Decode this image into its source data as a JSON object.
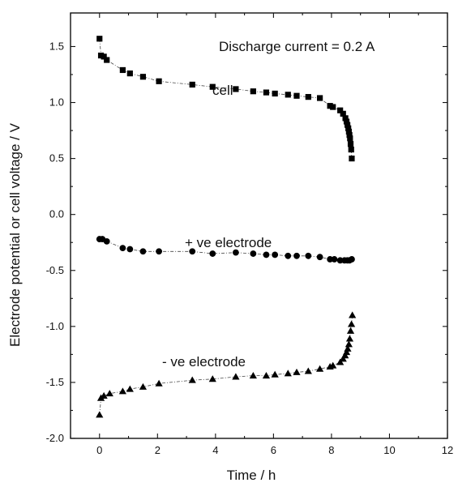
{
  "chart_data": {
    "type": "scatter",
    "title": "",
    "xlabel": "Time / h",
    "ylabel": "Electrode potential or cell voltage / V",
    "xlim": [
      -1,
      12
    ],
    "ylim": [
      -2.0,
      1.8
    ],
    "x_ticks": [
      0,
      2,
      4,
      6,
      8,
      10,
      12
    ],
    "y_ticks": [
      -2.0,
      -1.5,
      -1.0,
      -0.5,
      0.0,
      0.5,
      1.0,
      1.5
    ],
    "x_tick_labels": [
      "0",
      "2",
      "4",
      "6",
      "8",
      "10",
      "12"
    ],
    "y_tick_labels": [
      "-2.0",
      "-1.5",
      "-1.0",
      "-0.5",
      "0.0",
      "0.5",
      "1.0",
      "1.5"
    ],
    "grid": false,
    "annotations": [
      "Discharge current = 0.2 A",
      "cell",
      "+ ve electrode",
      "- ve electrode"
    ],
    "series": [
      {
        "name": "cell",
        "marker": "square",
        "points": [
          [
            0.0,
            1.57
          ],
          [
            0.05,
            1.42
          ],
          [
            0.15,
            1.41
          ],
          [
            0.25,
            1.38
          ],
          [
            0.8,
            1.29
          ],
          [
            1.05,
            1.26
          ],
          [
            1.5,
            1.23
          ],
          [
            2.05,
            1.19
          ],
          [
            3.2,
            1.16
          ],
          [
            3.9,
            1.14
          ],
          [
            4.7,
            1.12
          ],
          [
            5.3,
            1.1
          ],
          [
            5.75,
            1.09
          ],
          [
            6.05,
            1.08
          ],
          [
            6.5,
            1.07
          ],
          [
            6.8,
            1.06
          ],
          [
            7.2,
            1.05
          ],
          [
            7.6,
            1.04
          ],
          [
            7.95,
            0.97
          ],
          [
            8.05,
            0.96
          ],
          [
            8.3,
            0.93
          ],
          [
            8.4,
            0.9
          ],
          [
            8.48,
            0.86
          ],
          [
            8.52,
            0.83
          ],
          [
            8.55,
            0.8
          ],
          [
            8.58,
            0.77
          ],
          [
            8.6,
            0.74
          ],
          [
            8.62,
            0.71
          ],
          [
            8.64,
            0.68
          ],
          [
            8.66,
            0.63
          ],
          [
            8.68,
            0.58
          ],
          [
            8.7,
            0.5
          ]
        ]
      },
      {
        "name": "+ ve electrode",
        "marker": "circle",
        "points": [
          [
            0.0,
            -0.22
          ],
          [
            0.1,
            -0.22
          ],
          [
            0.25,
            -0.24
          ],
          [
            0.8,
            -0.3
          ],
          [
            1.05,
            -0.31
          ],
          [
            1.5,
            -0.33
          ],
          [
            2.05,
            -0.33
          ],
          [
            3.2,
            -0.33
          ],
          [
            3.9,
            -0.35
          ],
          [
            4.7,
            -0.34
          ],
          [
            5.3,
            -0.35
          ],
          [
            5.75,
            -0.36
          ],
          [
            6.05,
            -0.36
          ],
          [
            6.5,
            -0.37
          ],
          [
            6.8,
            -0.37
          ],
          [
            7.2,
            -0.37
          ],
          [
            7.6,
            -0.38
          ],
          [
            7.95,
            -0.4
          ],
          [
            8.1,
            -0.4
          ],
          [
            8.3,
            -0.41
          ],
          [
            8.45,
            -0.41
          ],
          [
            8.55,
            -0.41
          ],
          [
            8.62,
            -0.41
          ],
          [
            8.7,
            -0.4
          ]
        ]
      },
      {
        "name": "- ve electrode",
        "marker": "triangle",
        "points": [
          [
            0.0,
            -1.79
          ],
          [
            0.05,
            -1.64
          ],
          [
            0.15,
            -1.62
          ],
          [
            0.35,
            -1.6
          ],
          [
            0.8,
            -1.58
          ],
          [
            1.05,
            -1.56
          ],
          [
            1.5,
            -1.54
          ],
          [
            2.05,
            -1.51
          ],
          [
            3.2,
            -1.48
          ],
          [
            3.9,
            -1.47
          ],
          [
            4.7,
            -1.45
          ],
          [
            5.3,
            -1.44
          ],
          [
            5.75,
            -1.44
          ],
          [
            6.05,
            -1.43
          ],
          [
            6.5,
            -1.42
          ],
          [
            6.8,
            -1.41
          ],
          [
            7.2,
            -1.4
          ],
          [
            7.6,
            -1.38
          ],
          [
            7.95,
            -1.36
          ],
          [
            8.05,
            -1.35
          ],
          [
            8.3,
            -1.32
          ],
          [
            8.4,
            -1.29
          ],
          [
            8.47,
            -1.26
          ],
          [
            8.52,
            -1.23
          ],
          [
            8.56,
            -1.2
          ],
          [
            8.6,
            -1.16
          ],
          [
            8.63,
            -1.11
          ],
          [
            8.66,
            -1.04
          ],
          [
            8.69,
            -0.98
          ],
          [
            8.72,
            -0.9
          ]
        ]
      }
    ]
  }
}
